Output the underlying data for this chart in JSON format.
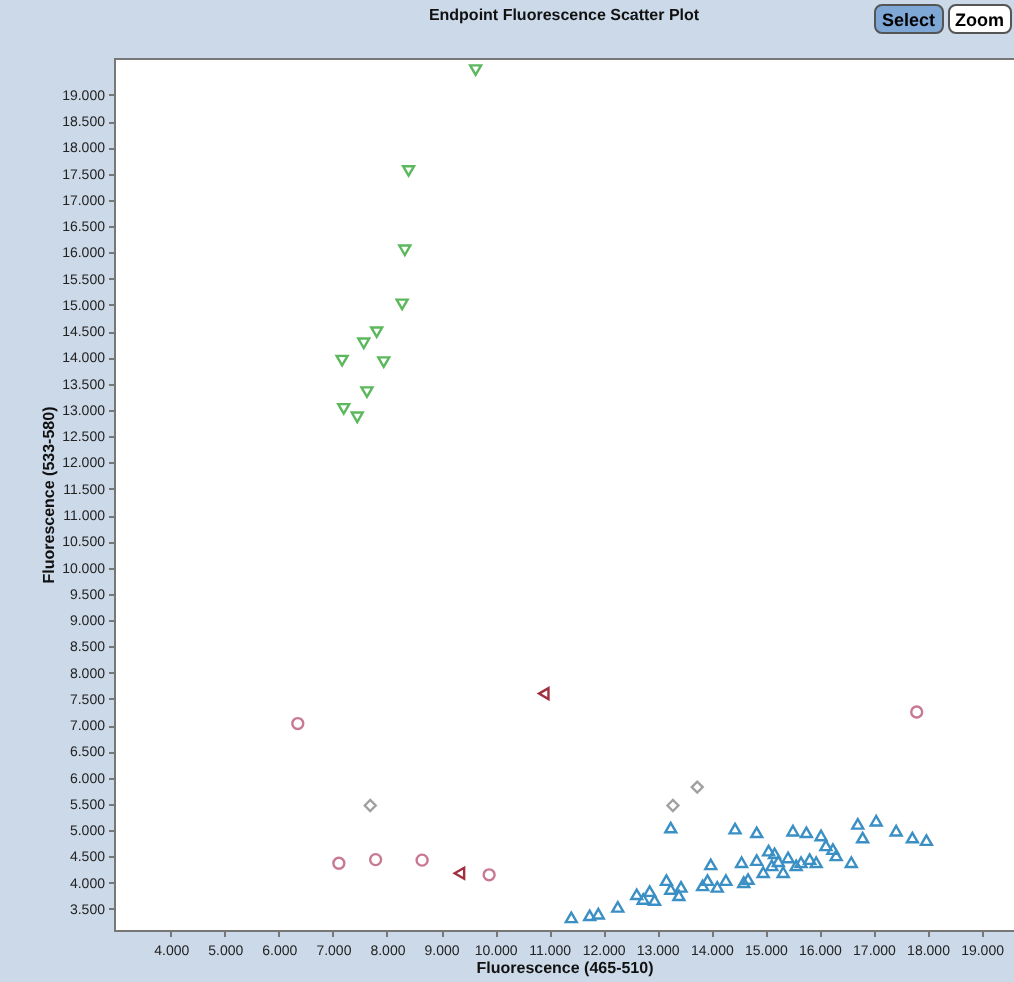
{
  "chart_data": {
    "type": "scatter",
    "title": "Endpoint Fluorescence Scatter Plot",
    "xlabel": "Fluorescence (465-510)",
    "ylabel": "Fluorescence (533-580)",
    "annotations": [
      "Select",
      "Zoom"
    ],
    "xlim": [
      2950,
      19600
    ],
    "ylim": [
      3100,
      19700
    ],
    "xticks": [
      {
        "value": 4000,
        "label": "4.000"
      },
      {
        "value": 5000,
        "label": "5.000"
      },
      {
        "value": 6000,
        "label": "6.000"
      },
      {
        "value": 7000,
        "label": "7.000"
      },
      {
        "value": 8000,
        "label": "8.000"
      },
      {
        "value": 9000,
        "label": "9.000"
      },
      {
        "value": 10000,
        "label": "10.000"
      },
      {
        "value": 11000,
        "label": "11.000"
      },
      {
        "value": 12000,
        "label": "12.000"
      },
      {
        "value": 13000,
        "label": "13.000"
      },
      {
        "value": 14000,
        "label": "14.000"
      },
      {
        "value": 15000,
        "label": "15.000"
      },
      {
        "value": 16000,
        "label": "16.000"
      },
      {
        "value": 17000,
        "label": "17.000"
      },
      {
        "value": 18000,
        "label": "18.000"
      },
      {
        "value": 19000,
        "label": "19.000"
      }
    ],
    "yticks": [
      {
        "value": 3500,
        "label": "3.500"
      },
      {
        "value": 4000,
        "label": "4.000"
      },
      {
        "value": 4500,
        "label": "4.500"
      },
      {
        "value": 5000,
        "label": "5.000"
      },
      {
        "value": 5500,
        "label": "5.500"
      },
      {
        "value": 6000,
        "label": "6.000"
      },
      {
        "value": 6500,
        "label": "6.500"
      },
      {
        "value": 7000,
        "label": "7.000"
      },
      {
        "value": 7500,
        "label": "7.500"
      },
      {
        "value": 8000,
        "label": "8.000"
      },
      {
        "value": 8500,
        "label": "8.500"
      },
      {
        "value": 9000,
        "label": "9.000"
      },
      {
        "value": 9500,
        "label": "9.500"
      },
      {
        "value": 10000,
        "label": "10.000"
      },
      {
        "value": 10500,
        "label": "10.500"
      },
      {
        "value": 11000,
        "label": "11.000"
      },
      {
        "value": 11500,
        "label": "11.500"
      },
      {
        "value": 12000,
        "label": "12.000"
      },
      {
        "value": 12500,
        "label": "12.500"
      },
      {
        "value": 13000,
        "label": "13.000"
      },
      {
        "value": 13500,
        "label": "13.500"
      },
      {
        "value": 14000,
        "label": "14.000"
      },
      {
        "value": 14500,
        "label": "14.500"
      },
      {
        "value": 15000,
        "label": "15.000"
      },
      {
        "value": 15500,
        "label": "15.500"
      },
      {
        "value": 16000,
        "label": "16.000"
      },
      {
        "value": 16500,
        "label": "16.500"
      },
      {
        "value": 17000,
        "label": "17.000"
      },
      {
        "value": 17500,
        "label": "17.500"
      },
      {
        "value": 18000,
        "label": "18.000"
      },
      {
        "value": 18500,
        "label": "18.500"
      },
      {
        "value": 19000,
        "label": "19.000"
      }
    ],
    "grid": false,
    "series": [
      {
        "color": "#5cb85c",
        "marker": "triangle-down",
        "x": [
          9640,
          8400,
          8330,
          8280,
          7810,
          7570,
          7170,
          7940,
          7630,
          7200,
          7450
        ],
        "values": [
          19470,
          17550,
          16040,
          15010,
          14480,
          14270,
          13940,
          13910,
          13340,
          13020,
          12860
        ]
      },
      {
        "color": "#3a8fc4",
        "marker": "triangle",
        "x": [
          11410,
          11750,
          11910,
          12270,
          12620,
          12740,
          12950,
          12860,
          13170,
          13250,
          13400,
          13440,
          13250,
          13840,
          13930,
          13990,
          14110,
          14270,
          14440,
          14600,
          14680,
          14560,
          14840,
          14840,
          14960,
          15060,
          15170,
          15120,
          15240,
          15330,
          15420,
          15510,
          15570,
          15660,
          15760,
          15820,
          15940,
          16030,
          16120,
          16250,
          16310,
          16590,
          16710,
          16800,
          17050,
          17420,
          17720,
          17980
        ],
        "values": [
          3340,
          3380,
          3410,
          3540,
          3780,
          3690,
          3670,
          3840,
          4050,
          3880,
          3760,
          3920,
          5050,
          3950,
          4050,
          4350,
          3920,
          4050,
          5030,
          4010,
          4070,
          4390,
          4960,
          4430,
          4200,
          4610,
          4560,
          4330,
          4410,
          4200,
          4480,
          4990,
          4330,
          4390,
          4960,
          4450,
          4390,
          4900,
          4710,
          4640,
          4520,
          4390,
          5120,
          4860,
          5180,
          4990,
          4860,
          4810
        ]
      },
      {
        "color": "#c87890",
        "marker": "circle",
        "x": [
          6350,
          7110,
          7790,
          8650,
          9890,
          17800
        ],
        "values": [
          7030,
          4370,
          4440,
          4430,
          4150,
          7250
        ]
      },
      {
        "color": "#a0a0a0",
        "marker": "diamond",
        "x": [
          13740,
          13290,
          7690
        ],
        "values": [
          5820,
          5470,
          5470
        ]
      },
      {
        "color": "#a03040",
        "marker": "triangle-left",
        "x": [
          10900,
          9340
        ],
        "values": [
          7600,
          4180
        ]
      }
    ]
  }
}
